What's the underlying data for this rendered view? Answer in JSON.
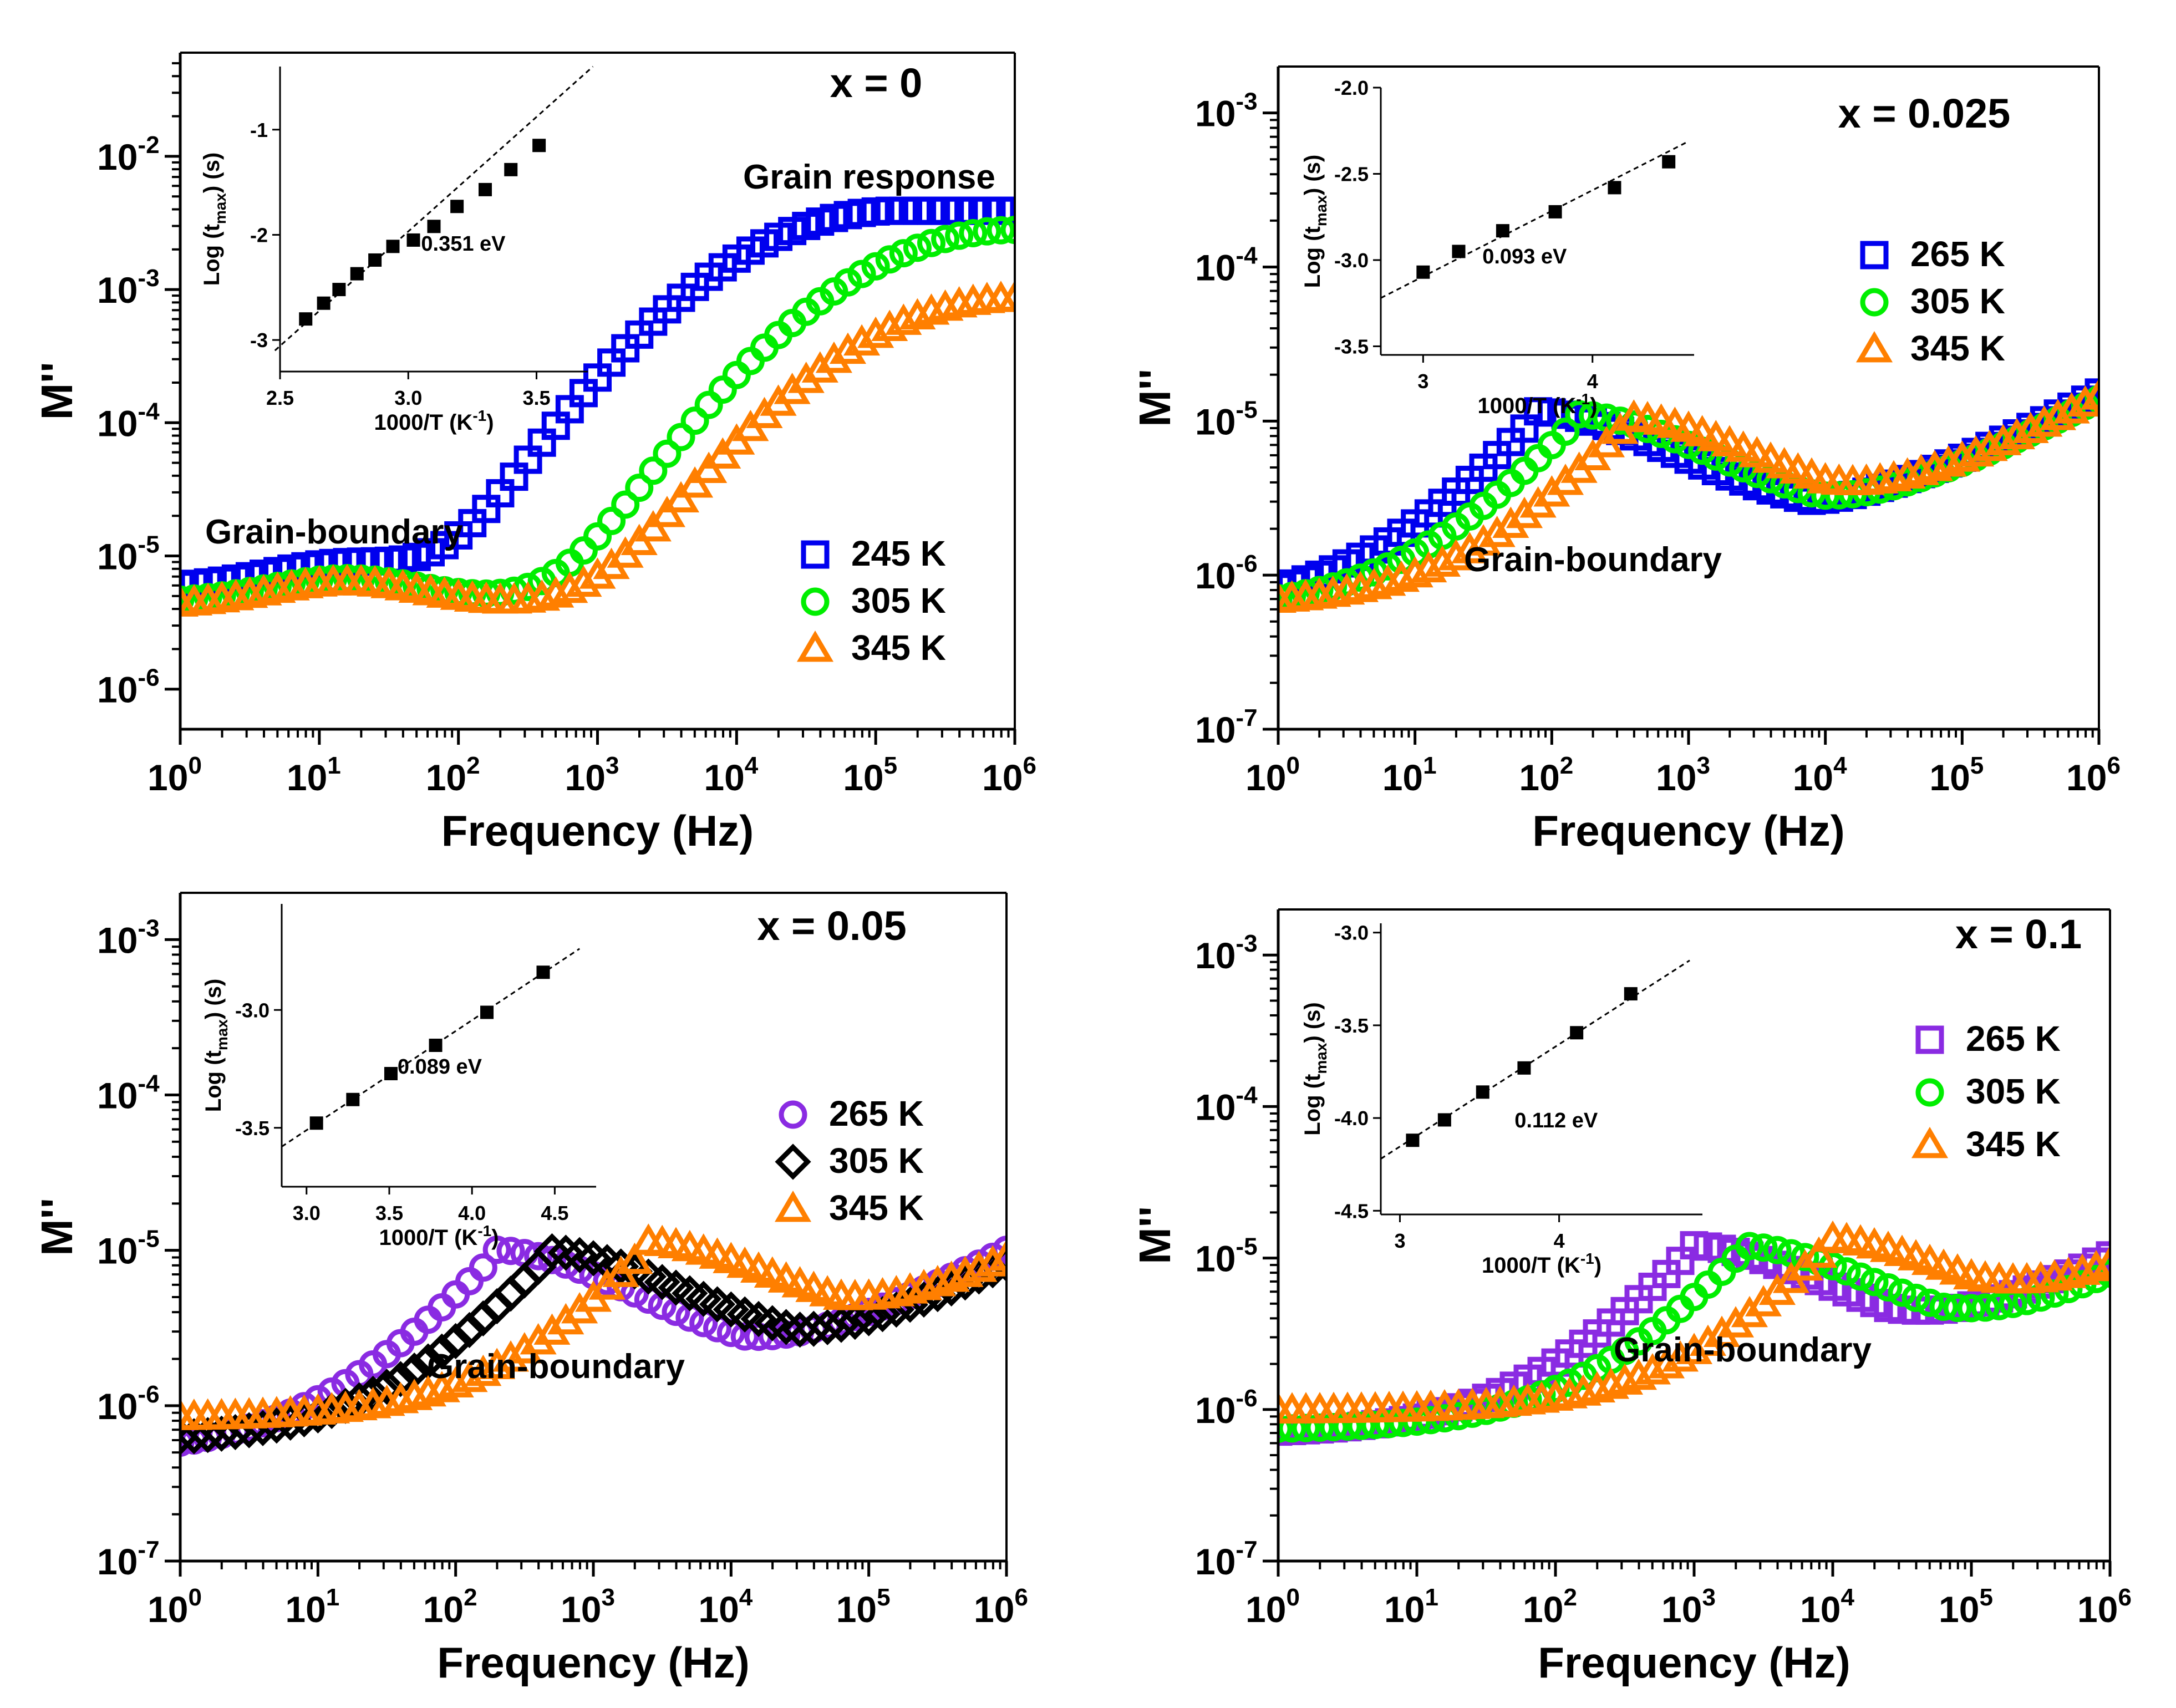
{
  "chart_data": [
    {
      "type": "scatter",
      "title": "x = 0",
      "xlabel": "Frequency (Hz)",
      "ylabel": "M''",
      "xscale": "log",
      "yscale": "log",
      "xlim": [
        1,
        1000000
      ],
      "ylim": [
        5e-07,
        0.06
      ],
      "x_ticks": [
        "0",
        "1",
        "2",
        "3",
        "4",
        "5",
        "6"
      ],
      "y_ticks": [
        "-6",
        "-5",
        "-4",
        "-3",
        "-2"
      ],
      "legend_position": "bottom-right",
      "annotations": [
        {
          "text": "Grain response",
          "x": 100000,
          "y": 0.012
        },
        {
          "text": "Grain-boundary",
          "x": 10,
          "y": 1.4e-05
        }
      ],
      "series": [
        {
          "name": "245 K",
          "marker": "square",
          "color": "#0000ee",
          "peak_x": 140000,
          "peak_y": 0.0039,
          "min_x": 1,
          "min_y": 5.8e-06
        },
        {
          "name": "305 K",
          "marker": "circle",
          "color": "#00ee00",
          "peak_x": 1000000,
          "peak_y": 0.0028,
          "min_x": 50,
          "min_y": 4.5e-06
        },
        {
          "name": "345 K",
          "marker": "triangle",
          "color": "#ff7f00",
          "peak_x": 1000000,
          "peak_y": 0.00085,
          "min_x": 200,
          "min_y": 4.2e-06
        }
      ],
      "inset": {
        "xlabel": "1000/T  (K",
        "xlabel_sup": "-1",
        "xlabel_end": ")",
        "ylabel": "Log (t",
        "ylabel_sub": "max",
        "ylabel_end": ") (s)",
        "xlim": [
          2.5,
          3.7
        ],
        "ylim": [
          -3.3,
          -0.4
        ],
        "x_ticks": [
          "2.5",
          "3.0",
          "3.5"
        ],
        "y_ticks": [
          "-3",
          "-2",
          "-1"
        ],
        "energy_label": "0.351 eV",
        "energy_label_pos": [
          3.05,
          -2.15
        ],
        "fit_line": [
          [
            2.48,
            -3.1
          ],
          [
            3.72,
            -0.4
          ]
        ],
        "points": [
          [
            2.6,
            -2.8
          ],
          [
            2.67,
            -2.65
          ],
          [
            2.73,
            -2.52
          ],
          [
            2.8,
            -2.37
          ],
          [
            2.87,
            -2.24
          ],
          [
            2.94,
            -2.11
          ],
          [
            3.02,
            -2.05
          ],
          [
            3.1,
            -1.92
          ],
          [
            3.19,
            -1.73
          ],
          [
            3.3,
            -1.57
          ],
          [
            3.4,
            -1.38
          ],
          [
            3.51,
            -1.15
          ]
        ]
      }
    },
    {
      "type": "scatter",
      "title": "x = 0.025",
      "xlabel": "Frequency (Hz)",
      "ylabel": "M''",
      "xscale": "log",
      "yscale": "log",
      "xlim": [
        1,
        1000000
      ],
      "ylim": [
        1e-07,
        0.002
      ],
      "x_ticks": [
        "0",
        "1",
        "2",
        "3",
        "4",
        "5",
        "6"
      ],
      "y_ticks": [
        "-7",
        "-6",
        "-5",
        "-4",
        "-3"
      ],
      "legend_position": "right",
      "annotations": [
        {
          "text": "Grain-boundary",
          "x": 180,
          "y": 1.05e-06
        }
      ],
      "series": [
        {
          "name": "265 K",
          "marker": "square",
          "color": "#0000ee",
          "peak_x": 70,
          "peak_y": 9.2e-06,
          "min_x": 8000,
          "min_y": 2.4e-06
        },
        {
          "name": "305 K",
          "marker": "circle",
          "color": "#00ee00",
          "peak_x": 140,
          "peak_y": 8.8e-06,
          "min_x": 9000,
          "min_y": 2.3e-06
        },
        {
          "name": "345 K",
          "marker": "triangle",
          "color": "#ff7f00",
          "peak_x": 320,
          "peak_y": 8.1e-06,
          "min_x": 10000,
          "min_y": 2.5e-06
        }
      ],
      "inset": {
        "xlabel": "1000/T (K",
        "xlabel_sup": "-1",
        "xlabel_end": ")",
        "ylabel": "Log (t",
        "ylabel_sub": "max",
        "ylabel_end": ") (s)",
        "xlim": [
          2.75,
          4.6
        ],
        "ylim": [
          -3.55,
          -2.0
        ],
        "x_ticks": [
          "3",
          "4"
        ],
        "y_ticks": [
          "-2.0",
          "-2.5",
          "-3.0",
          "-3.5"
        ],
        "energy_label": "0.093 eV",
        "energy_label_pos": [
          3.35,
          -3.02
        ],
        "fit_line": [
          [
            2.75,
            -3.22
          ],
          [
            4.55,
            -2.32
          ]
        ],
        "points": [
          [
            3.0,
            -3.07
          ],
          [
            3.21,
            -2.95
          ],
          [
            3.47,
            -2.83
          ],
          [
            3.78,
            -2.72
          ],
          [
            4.13,
            -2.58
          ],
          [
            4.45,
            -2.43
          ]
        ]
      }
    },
    {
      "type": "scatter",
      "title": "x = 0.05",
      "xlabel": "Frequency (Hz)",
      "ylabel": "M''",
      "xscale": "log",
      "yscale": "log",
      "xlim": [
        1,
        1000000
      ],
      "ylim": [
        1e-07,
        0.002
      ],
      "x_ticks": [
        "0",
        "1",
        "2",
        "3",
        "4",
        "5",
        "6"
      ],
      "y_ticks": [
        "-7",
        "-6",
        "-5",
        "-4",
        "-3"
      ],
      "legend_position": "right",
      "annotations": [
        {
          "text": "Grain-boundary",
          "x": 450,
          "y": 2.8e-06
        }
      ],
      "series": [
        {
          "name": "265 K",
          "marker": "circle",
          "color": "#8a2be2",
          "peak_x": 180,
          "peak_y": 8.2e-06,
          "min_x": 12000,
          "min_y": 1.9e-06
        },
        {
          "name": "305 K",
          "marker": "diamond",
          "color": "#000000",
          "peak_x": 420,
          "peak_y": 7.6e-06,
          "min_x": 30000,
          "min_y": 2.3e-06
        },
        {
          "name": "345 K",
          "marker": "triangle",
          "color": "#ff7f00",
          "peak_x": 2100,
          "peak_y": 8.1e-06,
          "min_x": 60000,
          "min_y": 3.3e-06
        }
      ],
      "inset": {
        "xlabel": "1000/T (K",
        "xlabel_sup": "-1",
        "xlabel_end": ")",
        "ylabel": "Log (t",
        "ylabel_sub": "max",
        "ylabel_end": ") (s)",
        "xlim": [
          2.85,
          4.75
        ],
        "ylim": [
          -3.75,
          -2.55
        ],
        "x_ticks": [
          "3.0",
          "3.5",
          "4.0",
          "4.5"
        ],
        "y_ticks": [
          "-3.0",
          "-3.5"
        ],
        "energy_label": "0.089 eV",
        "energy_label_pos": [
          3.55,
          -3.27
        ],
        "fit_line": [
          [
            2.85,
            -3.58
          ],
          [
            4.65,
            -2.74
          ]
        ],
        "points": [
          [
            3.06,
            -3.48
          ],
          [
            3.28,
            -3.38
          ],
          [
            3.51,
            -3.27
          ],
          [
            3.78,
            -3.15
          ],
          [
            4.09,
            -3.01
          ],
          [
            4.43,
            -2.84
          ]
        ]
      }
    },
    {
      "type": "scatter",
      "title": "x = 0.1",
      "xlabel": "Frequency (Hz)",
      "ylabel": "M''",
      "xscale": "log",
      "yscale": "log",
      "xlim": [
        1,
        1000000
      ],
      "ylim": [
        1e-07,
        0.002
      ],
      "x_ticks": [
        "0",
        "1",
        "2",
        "3",
        "4",
        "5",
        "6"
      ],
      "y_ticks": [
        "-7",
        "-6",
        "-5",
        "-4",
        "-3"
      ],
      "legend_position": "right",
      "annotations": [
        {
          "text": "Grain-boundary",
          "x": 1800,
          "y": 2.9e-06
        }
      ],
      "series": [
        {
          "name": "265 K",
          "marker": "square",
          "color": "#8a2be2",
          "peak_x": 850,
          "peak_y": 9.5e-06,
          "min_x": 25000,
          "min_y": 2.7e-06
        },
        {
          "name": "305 K",
          "marker": "circle",
          "color": "#00ee00",
          "peak_x": 2000,
          "peak_y": 9.2e-06,
          "min_x": 60000,
          "min_y": 2.9e-06
        },
        {
          "name": "345 K",
          "marker": "triangle",
          "color": "#ff7f00",
          "peak_x": 8000,
          "peak_y": 9.6e-06,
          "min_x": 100000,
          "min_y": 3.9e-06
        }
      ],
      "inset": {
        "xlabel": "1000/T (K",
        "xlabel_sup": "-1",
        "xlabel_end": ")",
        "ylabel": "Log (t",
        "ylabel_sub": "max",
        "ylabel_end": ") (s)",
        "xlim": [
          2.88,
          4.9
        ],
        "ylim": [
          -4.52,
          -2.95
        ],
        "x_ticks": [
          "3",
          "4"
        ],
        "y_ticks": [
          "-3.0",
          "-3.5",
          "-4.0",
          "-4.5"
        ],
        "energy_label": "0.112 eV",
        "energy_label_pos": [
          3.72,
          -4.05
        ],
        "fit_line": [
          [
            2.88,
            -4.22
          ],
          [
            4.82,
            -3.15
          ]
        ],
        "points": [
          [
            3.08,
            -4.12
          ],
          [
            3.28,
            -4.01
          ],
          [
            3.52,
            -3.86
          ],
          [
            3.78,
            -3.73
          ],
          [
            4.11,
            -3.54
          ],
          [
            4.45,
            -3.33
          ]
        ]
      }
    }
  ]
}
